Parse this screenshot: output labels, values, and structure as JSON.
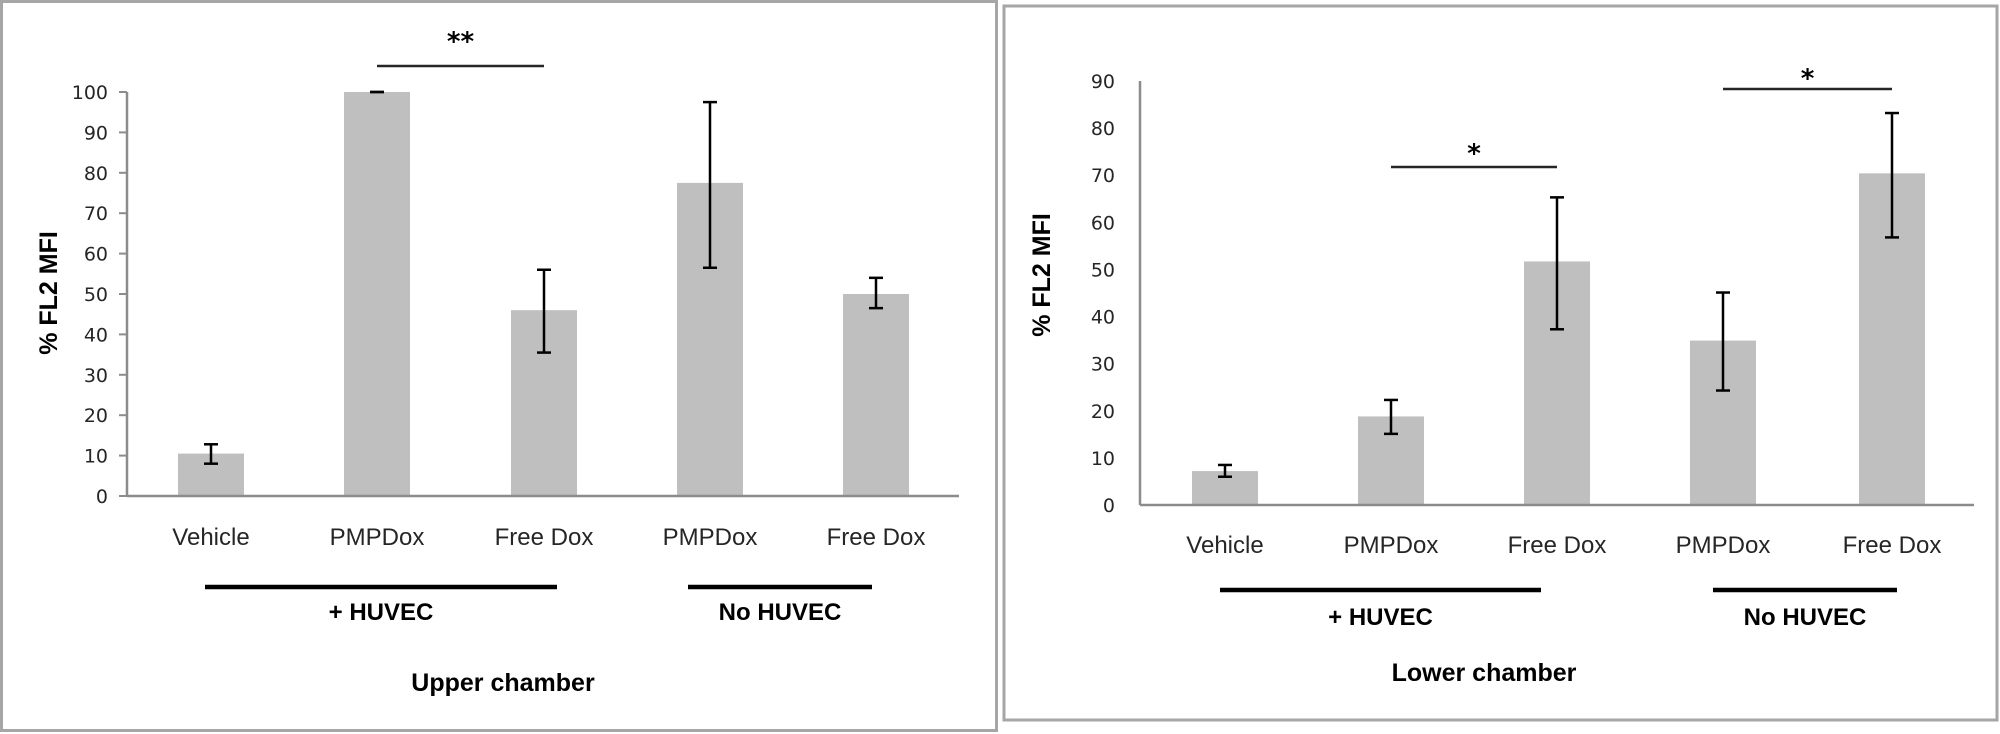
{
  "chart_data": [
    {
      "type": "bar",
      "title": "Upper chamber",
      "xlabel": "Upper chamber",
      "ylabel": "% FL2 MFI",
      "ylim": [
        0,
        100
      ],
      "yticks": [
        0,
        10,
        20,
        30,
        40,
        50,
        60,
        70,
        80,
        90,
        100
      ],
      "grid": false,
      "legend": null,
      "categories": [
        "Vehicle",
        "PMPDox",
        "Free Dox",
        "PMPDox",
        "Free Dox"
      ],
      "groups": [
        {
          "label": "+ HUVEC",
          "categories": [
            0,
            1,
            2
          ]
        },
        {
          "label": "No HUVEC",
          "categories": [
            3,
            4
          ]
        }
      ],
      "values": [
        10.5,
        100,
        46,
        77.5,
        50
      ],
      "error_low": [
        8,
        100,
        35.5,
        56.5,
        46.5
      ],
      "error_high": [
        12.8,
        100,
        56,
        97.5,
        54
      ],
      "significance": [
        {
          "label": "**",
          "from": 1,
          "to": 2
        }
      ],
      "bar_color": "#bfbfbf"
    },
    {
      "type": "bar",
      "title": "Lower  chamber",
      "xlabel": "Lower  chamber",
      "ylabel": "% FL2 MFI",
      "ylim": [
        0,
        90
      ],
      "yticks": [
        0,
        10,
        20,
        30,
        40,
        50,
        60,
        70,
        80,
        90
      ],
      "grid": false,
      "legend": null,
      "categories": [
        "Vehicle",
        "PMPDox",
        "Free Dox",
        "PMPDox",
        "Free Dox"
      ],
      "groups": [
        {
          "label": "+ HUVEC",
          "categories": [
            0,
            1,
            2
          ]
        },
        {
          "label": "No HUVEC",
          "categories": [
            3,
            4
          ]
        }
      ],
      "values": [
        7.2,
        18.8,
        51.7,
        34.9,
        70.4
      ],
      "error_low": [
        6,
        15.1,
        37.3,
        24.3,
        56.8
      ],
      "error_high": [
        8.5,
        22.3,
        65.3,
        45.1,
        83.2
      ],
      "significance": [
        {
          "label": "*",
          "from": 1,
          "to": 2
        },
        {
          "label": "*",
          "from": 3,
          "to": 4
        }
      ],
      "bar_color": "#bfbfbf"
    }
  ]
}
